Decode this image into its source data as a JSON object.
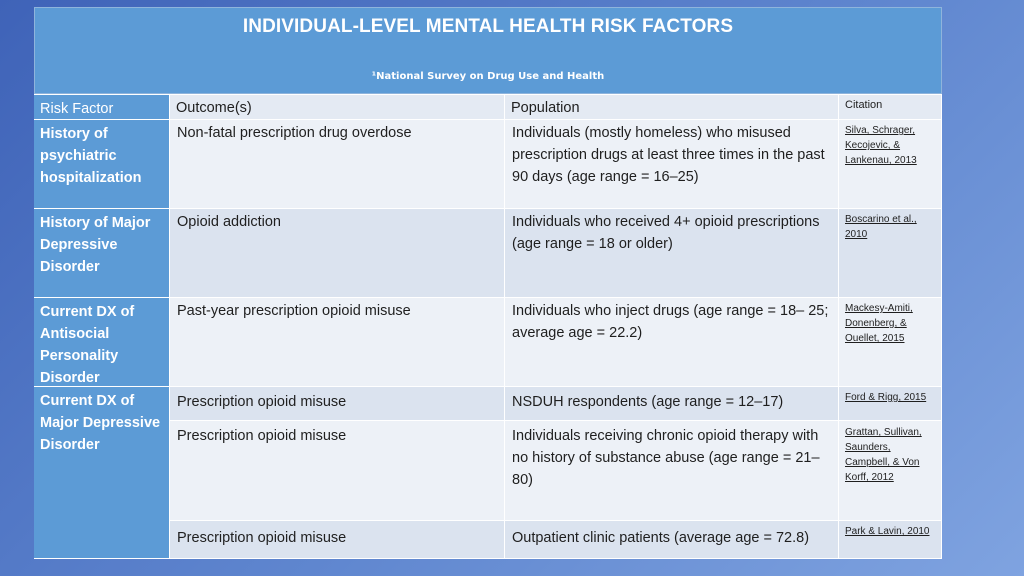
{
  "header": {
    "title": "INDIVIDUAL-LEVEL MENTAL HEALTH RISK FACTORS",
    "subtitle": "¹National Survey on Drug Use and Health"
  },
  "table": {
    "columns": [
      "Risk Factor",
      "Outcome(s)",
      "Population",
      "Citation"
    ],
    "rows": [
      {
        "risk_factor": "History of psychiatric hospitalization",
        "outcome": "Non-fatal prescription drug overdose",
        "population": "Individuals (mostly homeless) who misused prescription drugs at least three times in the past 90 days (age range = 16–25)",
        "citation": "Silva, Schrager, Kecojevic, & Lankenau, 2013"
      },
      {
        "risk_factor": "History of Major Depressive Disorder",
        "outcome": "Opioid addiction",
        "population": "Individuals who received 4+ opioid prescriptions (age range = 18 or older)",
        "citation": "Boscarino et al., 2010"
      },
      {
        "risk_factor": "Current DX of Antisocial Personality Disorder",
        "outcome": "Past-year prescription opioid misuse",
        "population": "Individuals who inject drugs (age range = 18– 25; average age = 22.2)",
        "citation": "Mackesy-Amiti, Donenberg, & Ouellet, 2015"
      },
      {
        "risk_factor": "Current DX of Major Depressive Disorder",
        "outcome": "Prescription opioid misuse",
        "population": "NSDUH respondents (age range = 12–17)",
        "citation": "Ford & Rigg, 2015"
      },
      {
        "risk_factor": "",
        "outcome": "Prescription opioid misuse",
        "population": "Individuals receiving chronic opioid therapy with no history of substance abuse (age range = 21–80)",
        "citation": "Grattan, Sullivan, Saunders, Campbell, & Von Korff, 2012"
      },
      {
        "risk_factor": "",
        "outcome": "Prescription opioid misuse",
        "population": "Outpatient clinic patients (average age = 72.8)",
        "citation": "Park & Lavin, 2010"
      }
    ]
  }
}
